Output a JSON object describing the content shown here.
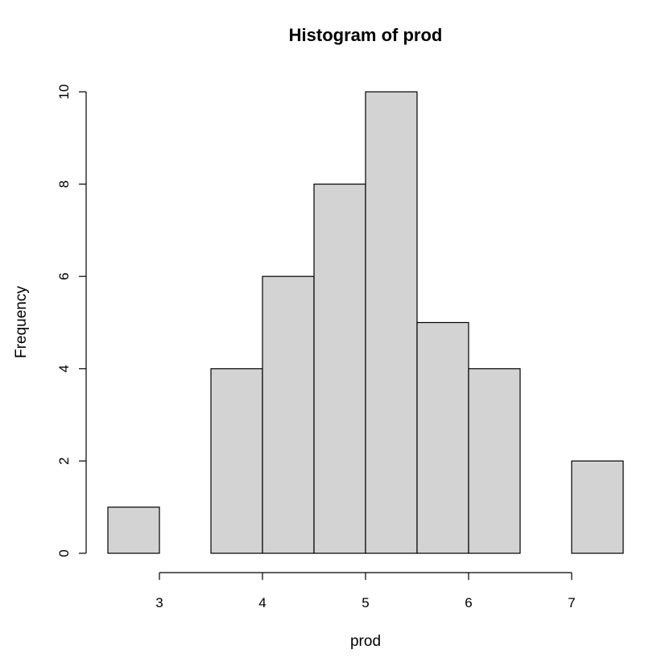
{
  "chart_data": {
    "type": "bar",
    "title": "Histogram of prod",
    "xlabel": "prod",
    "ylabel": "Frequency",
    "bins": [
      {
        "x0": 2.5,
        "x1": 3.0,
        "count": 1
      },
      {
        "x0": 3.0,
        "x1": 3.5,
        "count": 0
      },
      {
        "x0": 3.5,
        "x1": 4.0,
        "count": 4
      },
      {
        "x0": 4.0,
        "x1": 4.5,
        "count": 6
      },
      {
        "x0": 4.5,
        "x1": 5.0,
        "count": 8
      },
      {
        "x0": 5.0,
        "x1": 5.5,
        "count": 10
      },
      {
        "x0": 5.5,
        "x1": 6.0,
        "count": 5
      },
      {
        "x0": 6.0,
        "x1": 6.5,
        "count": 4
      },
      {
        "x0": 6.5,
        "x1": 7.0,
        "count": 0
      },
      {
        "x0": 7.0,
        "x1": 7.5,
        "count": 2
      }
    ],
    "x_ticks": [
      "3",
      "4",
      "5",
      "6",
      "7"
    ],
    "y_ticks": [
      "0",
      "2",
      "4",
      "6",
      "8",
      "10"
    ],
    "xlim": [
      2.5,
      7.5
    ],
    "ylim": [
      0,
      10
    ],
    "bar_fill": "#d3d3d3",
    "bar_stroke": "#000000",
    "grid": false,
    "legend": "none"
  }
}
